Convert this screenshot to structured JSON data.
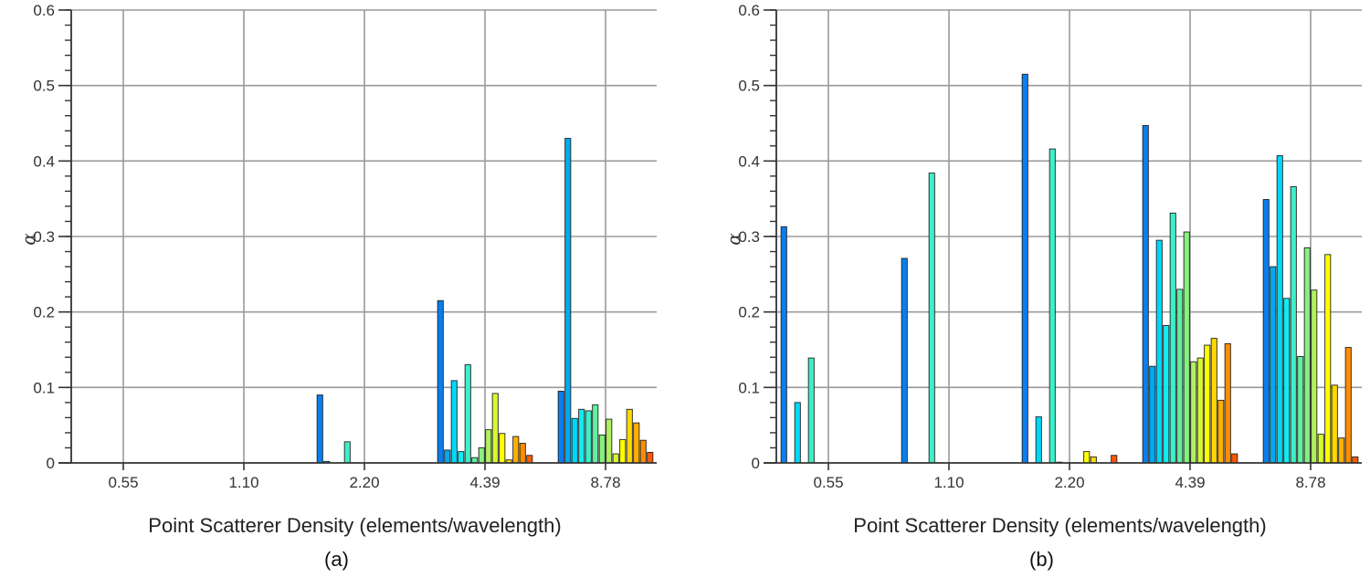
{
  "chart_data": [
    {
      "type": "bar",
      "panel_label": "(a)",
      "xlabel": "Point Scatterer Density (elements/wavelength)",
      "ylabel": "α",
      "ylim": [
        0,
        0.6
      ],
      "yticks": [
        "0",
        "0.1",
        "0.2",
        "0.3",
        "0.4",
        "0.5",
        "0.6"
      ],
      "grid": true,
      "categories": [
        "0.55",
        "1.10",
        "2.20",
        "4.39",
        "8.78"
      ],
      "groups": [
        [
          0,
          0,
          0,
          0,
          0,
          0,
          0,
          0,
          0,
          0,
          0,
          0,
          0,
          0
        ],
        [
          0,
          0,
          0,
          0,
          0,
          0,
          0,
          0,
          0,
          0,
          0,
          0,
          0,
          0
        ],
        [
          0.09,
          0.002,
          0,
          0,
          0.028,
          0,
          0,
          0,
          0,
          0,
          0,
          0,
          0,
          0
        ],
        [
          0.215,
          0.017,
          0.109,
          0.015,
          0.13,
          0.007,
          0.02,
          0.044,
          0.092,
          0.039,
          0.004,
          0.035,
          0.026,
          0.01
        ],
        [
          0.095,
          0.43,
          0.059,
          0.071,
          0.069,
          0.077,
          0.037,
          0.058,
          0.012,
          0.031,
          0.071,
          0.053,
          0.03,
          0.014
        ]
      ]
    },
    {
      "type": "bar",
      "panel_label": "(b)",
      "xlabel": "Point Scatterer Density (elements/wavelength)",
      "ylabel": "α",
      "ylim": [
        0,
        0.6
      ],
      "yticks": [
        "0",
        "0.1",
        "0.2",
        "0.3",
        "0.4",
        "0.5",
        "0.6"
      ],
      "grid": true,
      "categories": [
        "0.55",
        "1.10",
        "2.20",
        "4.39",
        "8.78"
      ],
      "groups": [
        [
          0.313,
          0,
          0.08,
          0,
          0.139,
          0,
          0,
          0,
          0,
          0,
          0,
          0,
          0,
          0
        ],
        [
          0.271,
          0,
          0,
          0,
          0.384,
          0,
          0,
          0,
          0,
          0,
          0,
          0,
          0,
          0
        ],
        [
          0.515,
          0,
          0.061,
          0,
          0.416,
          0.001,
          0,
          0,
          0,
          0.015,
          0.008,
          0,
          0,
          0.01
        ],
        [
          0.447,
          0.128,
          0.295,
          0.182,
          0.331,
          0.23,
          0.306,
          0.134,
          0.139,
          0.156,
          0.165,
          0.083,
          0.158,
          0.012
        ],
        [
          0.349,
          0.26,
          0.407,
          0.218,
          0.366,
          0.141,
          0.285,
          0.229,
          0.038,
          0.276,
          0.103,
          0.033,
          0.153,
          0.008
        ]
      ]
    }
  ],
  "bar_colors": [
    "#0a7ef0",
    "#00aaf0",
    "#00d8f8",
    "#10ecf0",
    "#3cf0c8",
    "#60f0a0",
    "#88f080",
    "#b0f060",
    "#d8f830",
    "#ffff00",
    "#ffd800",
    "#ffb000",
    "#ff8c00",
    "#ff5a00"
  ]
}
